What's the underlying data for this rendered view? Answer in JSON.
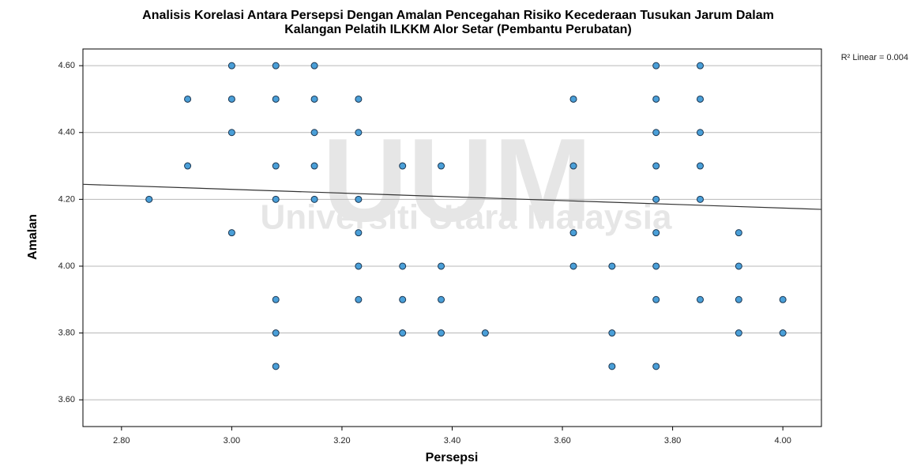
{
  "chart_data": {
    "type": "scatter",
    "title": [
      "Analisis Korelasi Antara Persepsi Dengan Amalan Pencegahan Risiko Kecederaan Tusukan Jarum Dalam",
      "Kalangan Pelatih ILKKM Alor Setar (Pembantu Perubatan)"
    ],
    "x_label": "Persepsi",
    "y_label": "Amalan",
    "annotation": "R² Linear = 0.004",
    "watermark": [
      "UUM",
      "Universiti Utara Malaysia"
    ],
    "color": "#4a9fd8",
    "x": [
      3.0,
      3.0,
      3.0,
      3.0,
      3.08,
      3.08,
      3.08,
      3.08,
      3.08,
      3.08,
      3.08,
      2.92,
      2.92,
      2.85,
      3.15,
      3.15,
      3.15,
      3.15,
      3.15,
      3.23,
      3.23,
      3.23,
      3.23,
      3.23,
      3.23,
      3.31,
      3.31,
      3.31,
      3.31,
      3.38,
      3.38,
      3.38,
      3.38,
      3.46,
      3.62,
      3.62,
      3.62,
      3.62,
      3.69,
      3.69,
      3.69,
      3.77,
      3.77,
      3.77,
      3.77,
      3.77,
      3.77,
      3.77,
      3.77,
      3.77,
      3.85,
      3.85,
      3.85,
      3.85,
      3.85,
      3.85,
      3.92,
      3.92,
      3.92,
      3.92,
      4.0,
      4.0
    ],
    "values": [
      4.6,
      4.5,
      4.4,
      4.1,
      4.6,
      4.5,
      4.3,
      4.2,
      3.9,
      3.8,
      3.7,
      4.5,
      4.3,
      4.2,
      4.6,
      4.5,
      4.4,
      4.3,
      4.2,
      4.5,
      4.4,
      4.2,
      4.1,
      4.0,
      3.9,
      4.3,
      4.0,
      3.9,
      3.8,
      4.3,
      4.0,
      3.9,
      3.8,
      3.8,
      4.5,
      4.3,
      4.1,
      4.0,
      4.0,
      3.8,
      3.7,
      4.6,
      4.5,
      4.4,
      4.3,
      4.2,
      4.1,
      4.0,
      3.9,
      3.7,
      4.6,
      4.5,
      4.4,
      4.3,
      4.2,
      3.9,
      4.1,
      4.0,
      3.9,
      3.8,
      3.9,
      3.8
    ],
    "fit_line": {
      "x": [
        2.73,
        4.07
      ],
      "values": [
        4.245,
        4.17
      ],
      "color": "#333333"
    },
    "xlim": [
      2.73,
      4.07
    ],
    "ylim": [
      3.52,
      4.65
    ],
    "xticks": [
      {
        "value": 2.8,
        "label": "2.80"
      },
      {
        "value": 3.0,
        "label": "3.00"
      },
      {
        "value": 3.2,
        "label": "3.20"
      },
      {
        "value": 3.4,
        "label": "3.40"
      },
      {
        "value": 3.6,
        "label": "3.60"
      },
      {
        "value": 3.8,
        "label": "3.80"
      },
      {
        "value": 4.0,
        "label": "4.00"
      }
    ],
    "yticks": [
      {
        "value": 3.6,
        "label": "3.60"
      },
      {
        "value": 3.8,
        "label": "3.80"
      },
      {
        "value": 4.0,
        "label": "4.00"
      },
      {
        "value": 4.2,
        "label": "4.20"
      },
      {
        "value": 4.4,
        "label": "4.40"
      },
      {
        "value": 4.6,
        "label": "4.60"
      }
    ],
    "grid": true
  }
}
